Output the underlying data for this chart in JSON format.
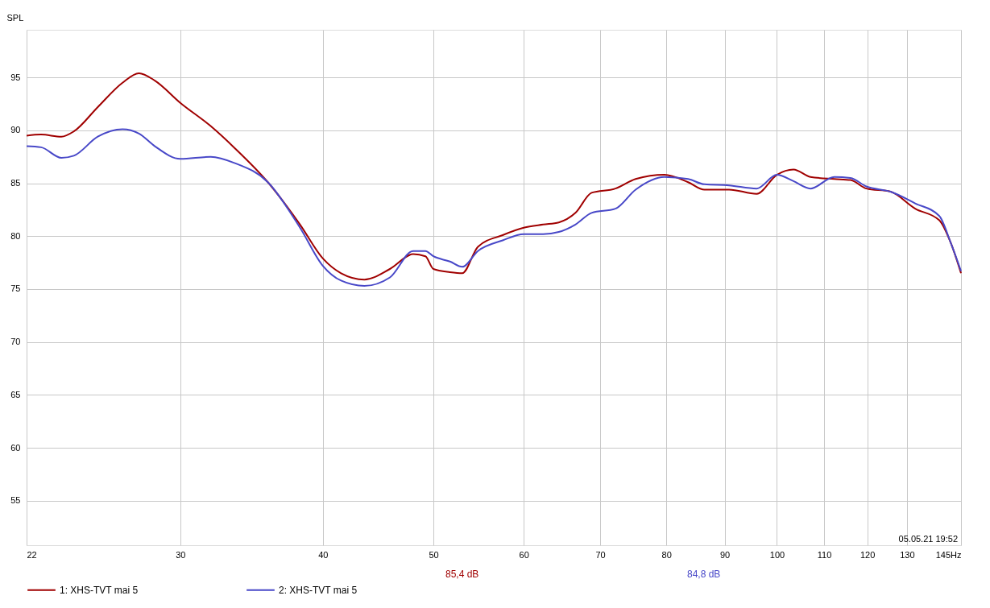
{
  "chart_data": {
    "type": "line",
    "ylabel": "SPL",
    "log": "x",
    "xlim": [
      22,
      145
    ],
    "ylim": [
      50.8,
      99.5
    ],
    "xticks": [
      22,
      30,
      40,
      50,
      60,
      70,
      80,
      90,
      100,
      110,
      120,
      130,
      {
        "value": 145,
        "label": "145Hz"
      }
    ],
    "yticks": [
      55,
      60,
      65,
      70,
      75,
      80,
      85,
      90,
      95
    ],
    "grid": true,
    "legend": "bottom",
    "line_style": "solid",
    "marker": "none",
    "annotations": [
      "85,4 dB",
      "84,8 dB",
      "05.05.21 19:52"
    ],
    "series": [
      {
        "name": "1: XHS-TVT mai 5",
        "color": "#a00000",
        "x": [
          22,
          22.65,
          23.6,
          24.2,
          25.4,
          26.7,
          27.6,
          28.5,
          30,
          31.9,
          33.5,
          35.8,
          38.2,
          40,
          41.5,
          43.5,
          45.8,
          48,
          49.2,
          50,
          51.7,
          53,
          54.7,
          57.5,
          60,
          62.4,
          64.4,
          66.6,
          68.8,
          72.2,
          75.2,
          79.7,
          83.6,
          86.4,
          90.8,
          96,
          100,
          103.4,
          107,
          112.3,
          116,
          119.8,
          125.8,
          132.2,
          138.8,
          142,
          145
        ],
        "values": [
          89.5,
          89.6,
          89.4,
          89.9,
          92.2,
          94.5,
          95.4,
          94.7,
          92.6,
          90.4,
          88.3,
          85.1,
          81.1,
          77.9,
          76.5,
          75.9,
          76.9,
          78.3,
          78.1,
          76.9,
          76.6,
          76.5,
          79.0,
          80.1,
          80.8,
          81.1,
          81.3,
          82.2,
          84.1,
          84.5,
          85.4,
          85.8,
          85.1,
          84.4,
          84.4,
          84.0,
          85.8,
          86.3,
          85.6,
          85.4,
          85.3,
          84.5,
          84.2,
          82.6,
          81.5,
          79.4,
          76.5
        ]
      },
      {
        "name": "2: XHS-TVT mai 5",
        "color": "#4848c8",
        "x": [
          22,
          22.65,
          23.6,
          24.2,
          25.4,
          26.7,
          27.6,
          28.5,
          30,
          31.9,
          33.5,
          35.8,
          38.2,
          40,
          41.5,
          43.5,
          45.8,
          48,
          49.2,
          50,
          51.7,
          53,
          54.7,
          57.5,
          60,
          62.4,
          64.4,
          66.6,
          68.8,
          72.2,
          75.2,
          79.7,
          83.6,
          86.4,
          90.8,
          96,
          100,
          103.4,
          107,
          112.3,
          116,
          119.8,
          125.8,
          132.2,
          138.8,
          142,
          145
        ],
        "values": [
          88.5,
          88.4,
          87.4,
          87.6,
          89.4,
          90.1,
          89.7,
          88.5,
          87.3,
          87.5,
          86.9,
          85.1,
          80.8,
          77.2,
          75.8,
          75.3,
          76.1,
          78.6,
          78.6,
          78.1,
          77.6,
          77.1,
          78.6,
          79.6,
          80.2,
          80.2,
          80.4,
          81.1,
          82.2,
          82.6,
          84.4,
          85.6,
          85.4,
          84.9,
          84.8,
          84.5,
          85.8,
          85.2,
          84.5,
          85.6,
          85.5,
          84.7,
          84.2,
          83.1,
          81.9,
          79.4,
          76.7
        ]
      }
    ]
  }
}
